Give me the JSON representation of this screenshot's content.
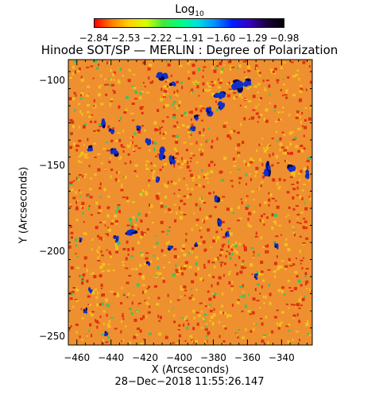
{
  "colorbar": {
    "title": "Log",
    "title_sub": "10",
    "ticks": [
      "−2.84",
      "−2.53",
      "−2.22",
      "−1.91",
      "−1.60",
      "−1.29",
      "−0.98"
    ],
    "colormap": [
      "#ff0000",
      "#ff7f00",
      "#ffd000",
      "#d8ff00",
      "#40e840",
      "#00ff80",
      "#00e0e0",
      "#0090ff",
      "#0020ff",
      "#3800c0",
      "#1a0040",
      "#000000"
    ]
  },
  "title": "Hinode SOT/SP — MERLIN : Degree of Polarization",
  "x_axis": {
    "label": "X (Arcseconds)",
    "range": [
      -465,
      -322
    ],
    "ticks": [
      "−460",
      "−440",
      "−420",
      "−400",
      "−380",
      "−360",
      "−340"
    ],
    "tick_values": [
      -460,
      -440,
      -420,
      -400,
      -380,
      -360,
      -340
    ]
  },
  "y_axis": {
    "label": "Y (Arcseconds)",
    "range": [
      -255,
      -88
    ],
    "ticks": [
      "−100",
      "−150",
      "−200",
      "−250"
    ],
    "tick_values": [
      -100,
      -150,
      -200,
      -250
    ]
  },
  "timestamp": "28−Dec−2018 11:55:26.147",
  "image_colors": {
    "background": "#ee9030",
    "low": "#e03010",
    "mid": "#f4c020",
    "high_blue": "#1030c8",
    "high_dark": "#0a0050",
    "green": "#40c060"
  }
}
